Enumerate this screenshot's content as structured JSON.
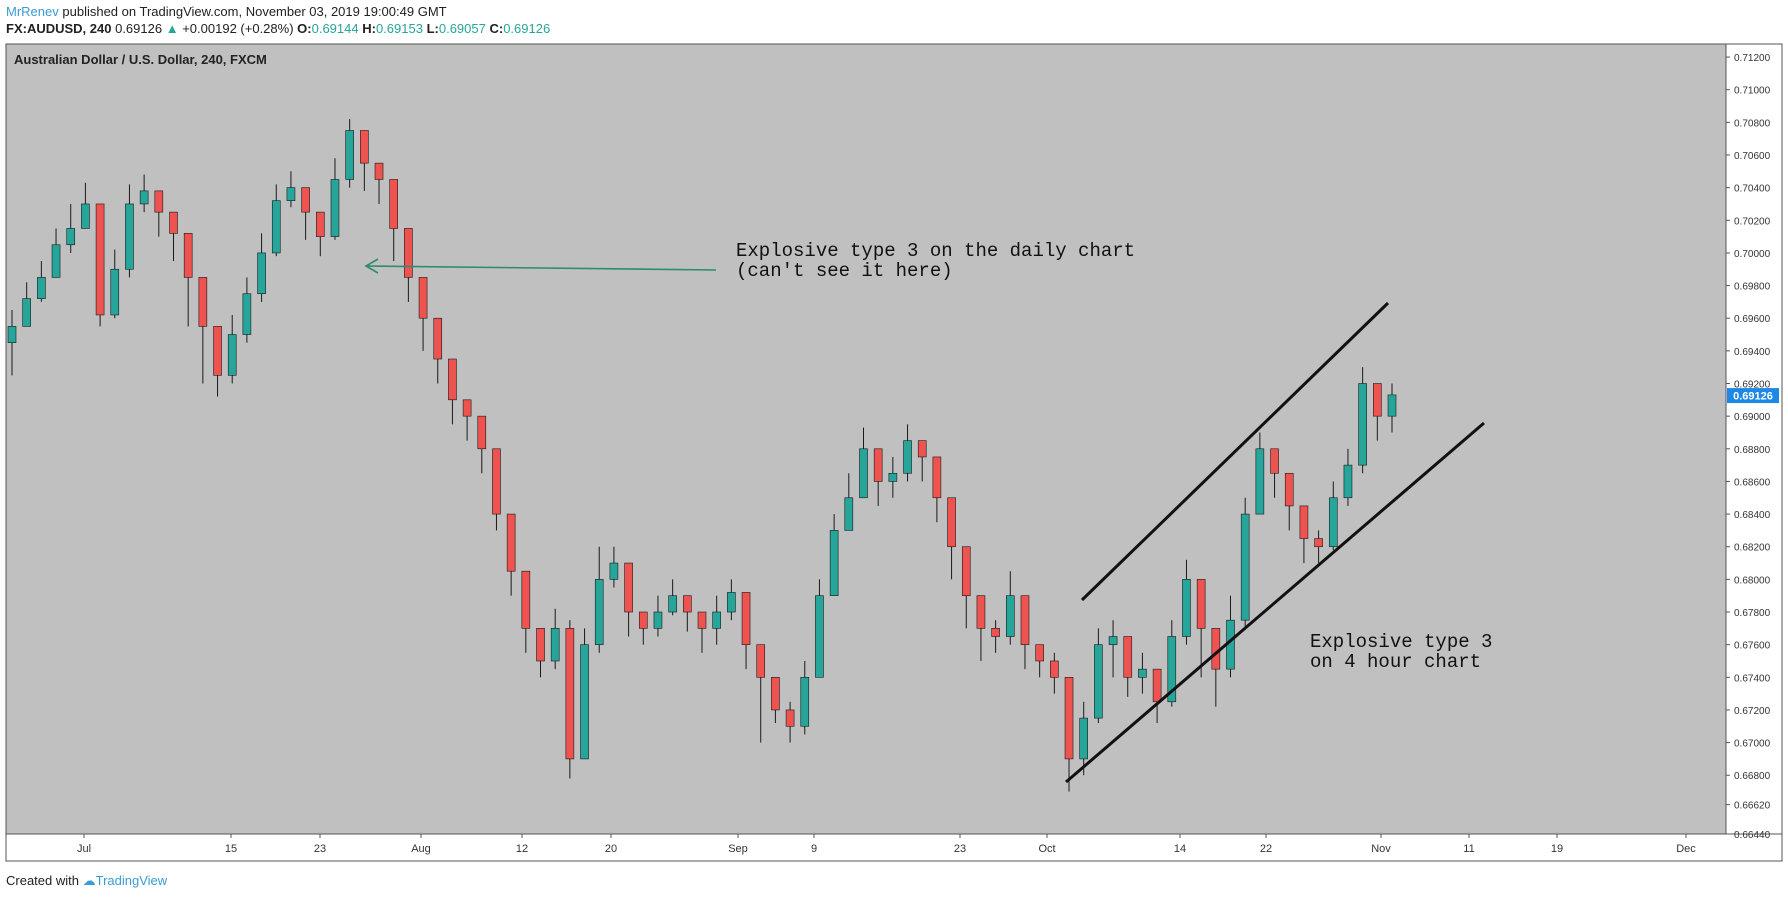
{
  "header": {
    "author": "MrRenev",
    "published": "published on TradingView.com, November 03, 2019 19:00:49 GMT",
    "symbol": "FX:AUDUSD, 240",
    "last": "0.69126",
    "change": "+0.00192 (+0.28%)",
    "o_label": "O:",
    "o_value": "0.69144",
    "h_label": "H:",
    "h_value": "0.69153",
    "l_label": "L:",
    "l_value": "0.69057",
    "c_label": "C:",
    "c_value": "0.69126"
  },
  "footer": {
    "created": "Created with",
    "brand": "TradingView"
  },
  "chart_data": {
    "type": "candlestick",
    "title": "Australian Dollar / U.S. Dollar, 240, FXCM",
    "x_tick_labels": [
      "Jul",
      "15",
      "23",
      "Aug",
      "12",
      "20",
      "Sep",
      "9",
      "23",
      "Oct",
      "14",
      "22",
      "Nov",
      "11",
      "19",
      "Dec"
    ],
    "y_tick_labels": [
      "0.71200",
      "0.71000",
      "0.70800",
      "0.70600",
      "0.70400",
      "0.70200",
      "0.70000",
      "0.69800",
      "0.69600",
      "0.69400",
      "0.69200",
      "0.69000",
      "0.68800",
      "0.68600",
      "0.68400",
      "0.68200",
      "0.68000",
      "0.67800",
      "0.67600",
      "0.67400",
      "0.67200",
      "0.67000",
      "0.66800",
      "0.66620",
      "0.66440"
    ],
    "ylim": [
      0.6644,
      0.7128
    ],
    "current_price": "0.69126",
    "series": [
      {
        "values_close": [
          0.6955,
          0.6972,
          0.6985,
          0.7005,
          0.7015,
          0.703,
          0.6962,
          0.699,
          0.703,
          0.7038,
          0.7025,
          0.7012,
          0.6985,
          0.6955,
          0.6925,
          0.695,
          0.6975,
          0.7,
          0.7032,
          0.704,
          0.7025,
          0.701,
          0.7045,
          0.7075,
          0.7055,
          0.7045,
          0.7015,
          0.6985,
          0.696,
          0.6935,
          0.691,
          0.69,
          0.688,
          0.684,
          0.6805,
          0.677,
          0.675,
          0.677,
          0.669,
          0.676,
          0.68,
          0.681,
          0.678,
          0.677,
          0.678,
          0.679,
          0.678,
          0.677,
          0.678,
          0.6792,
          0.676,
          0.674,
          0.672,
          0.671,
          0.674,
          0.679,
          0.683,
          0.685,
          0.688,
          0.686,
          0.6865,
          0.6885,
          0.6875,
          0.685,
          0.682,
          0.679,
          0.677,
          0.6765,
          0.679,
          0.676,
          0.675,
          0.674,
          0.669,
          0.6715,
          0.676,
          0.6765,
          0.674,
          0.6745,
          0.6725,
          0.6765,
          0.68,
          0.677,
          0.6745,
          0.6775,
          0.684,
          0.688,
          0.6865,
          0.6845,
          0.6825,
          0.682,
          0.685,
          0.687,
          0.692,
          0.69,
          0.6913
        ],
        "values_high": [
          0.6965,
          0.6982,
          0.6995,
          0.7015,
          0.703,
          0.7043,
          0.6975,
          0.7002,
          0.7042,
          0.7048,
          0.7035,
          0.702,
          0.6995,
          0.6965,
          0.6935,
          0.6962,
          0.6985,
          0.7012,
          0.7042,
          0.705,
          0.7035,
          0.702,
          0.7058,
          0.7082,
          0.7065,
          0.7055,
          0.7025,
          0.6995,
          0.697,
          0.6945,
          0.692,
          0.691,
          0.6892,
          0.685,
          0.6815,
          0.678,
          0.676,
          0.6782,
          0.6775,
          0.677,
          0.682,
          0.682,
          0.679,
          0.678,
          0.679,
          0.68,
          0.679,
          0.678,
          0.679,
          0.68,
          0.677,
          0.675,
          0.673,
          0.6725,
          0.675,
          0.68,
          0.684,
          0.6865,
          0.6893,
          0.687,
          0.6875,
          0.6895,
          0.6885,
          0.686,
          0.683,
          0.68,
          0.678,
          0.6775,
          0.6805,
          0.677,
          0.676,
          0.6755,
          0.672,
          0.6725,
          0.677,
          0.6775,
          0.675,
          0.6755,
          0.674,
          0.6775,
          0.6812,
          0.6782,
          0.676,
          0.679,
          0.685,
          0.689,
          0.6875,
          0.6855,
          0.6835,
          0.683,
          0.686,
          0.688,
          0.693,
          0.6915,
          0.692
        ],
        "values_low": [
          0.6925,
          0.6955,
          0.697,
          0.699,
          0.7,
          0.7015,
          0.6955,
          0.696,
          0.6985,
          0.7025,
          0.701,
          0.6995,
          0.6955,
          0.692,
          0.6912,
          0.692,
          0.6945,
          0.697,
          0.6998,
          0.7028,
          0.7008,
          0.6998,
          0.7008,
          0.704,
          0.7038,
          0.703,
          0.6995,
          0.697,
          0.694,
          0.692,
          0.6895,
          0.6885,
          0.6865,
          0.683,
          0.679,
          0.6755,
          0.674,
          0.6745,
          0.6678,
          0.669,
          0.6755,
          0.6795,
          0.6765,
          0.676,
          0.6765,
          0.6778,
          0.6768,
          0.6755,
          0.676,
          0.6775,
          0.6745,
          0.67,
          0.6712,
          0.67,
          0.6705,
          0.674,
          0.679,
          0.683,
          0.6855,
          0.6845,
          0.685,
          0.686,
          0.686,
          0.6835,
          0.68,
          0.677,
          0.675,
          0.6755,
          0.676,
          0.6745,
          0.674,
          0.673,
          0.667,
          0.668,
          0.6712,
          0.674,
          0.6728,
          0.673,
          0.6712,
          0.6722,
          0.676,
          0.674,
          0.6722,
          0.674,
          0.677,
          0.684,
          0.685,
          0.683,
          0.681,
          0.681,
          0.6818,
          0.6845,
          0.6865,
          0.6885,
          0.689
        ]
      }
    ],
    "annotations": [
      {
        "text": "Explosive type 3 on the daily chart\n(can't see it here)"
      },
      {
        "text": "Explosive type 3\non 4 hour chart"
      }
    ],
    "colors": {
      "background": "#c0c0c0",
      "up": "#26a69a",
      "down": "#ef5350",
      "wick": "#1a1a1a",
      "arrow": "#2e8b6e",
      "price_tag": "#1e88e5"
    }
  }
}
